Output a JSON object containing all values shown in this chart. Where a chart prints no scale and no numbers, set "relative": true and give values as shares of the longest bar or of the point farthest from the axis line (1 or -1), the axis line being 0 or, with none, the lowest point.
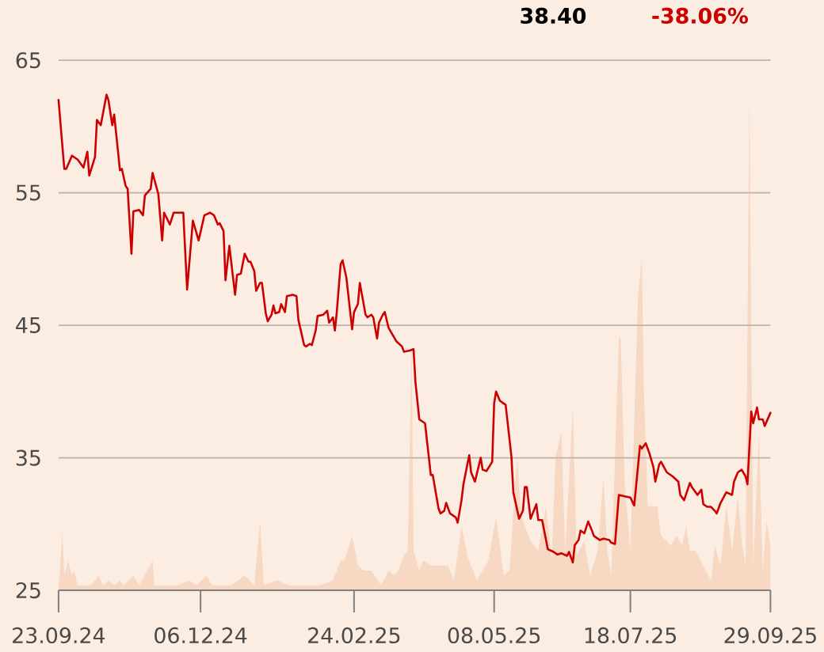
{
  "chart_data": [
    {
      "type": "line",
      "color": "#cc0000",
      "marker": "none",
      "line_style": "solid",
      "grid": "y",
      "annotations": [
        "38.40",
        "-38.06%"
      ],
      "xlim": [
        "2024-09-23",
        "2025-09-29"
      ],
      "ylim": [
        25,
        65
      ],
      "yticks": [
        25,
        35,
        45,
        55,
        65
      ],
      "xticks": [
        {
          "value": "2024-09-23",
          "label": "23.09.24"
        },
        {
          "value": "2024-12-06",
          "label": "06.12.24"
        },
        {
          "value": "2025-02-24",
          "label": "24.02.25"
        },
        {
          "value": "2025-05-08",
          "label": "08.05.25"
        },
        {
          "value": "2025-07-18",
          "label": "18.07.25"
        },
        {
          "value": "2025-09-29",
          "label": "29.09.25"
        }
      ],
      "x": [
        "2024-09-23",
        "2024-09-26",
        "2024-09-27",
        "2024-09-30",
        "2024-10-03",
        "2024-10-06",
        "2024-10-08",
        "2024-10-09",
        "2024-10-12",
        "2024-10-13",
        "2024-10-15",
        "2024-10-18",
        "2024-10-19",
        "2024-10-21",
        "2024-10-22",
        "2024-10-25",
        "2024-10-26",
        "2024-10-28",
        "2024-10-29",
        "2024-10-31",
        "2024-11-01",
        "2024-11-04",
        "2024-11-06",
        "2024-11-07",
        "2024-11-10",
        "2024-11-11",
        "2024-11-14",
        "2024-11-16",
        "2024-11-17",
        "2024-11-20",
        "2024-11-22",
        "2024-11-27",
        "2024-11-29",
        "2024-12-02",
        "2024-12-05",
        "2024-12-08",
        "2024-12-11",
        "2024-12-13",
        "2024-12-15",
        "2024-12-16",
        "2024-12-18",
        "2024-12-19",
        "2024-12-21",
        "2024-12-24",
        "2024-12-25",
        "2024-12-27",
        "2024-12-29",
        "2024-12-31",
        "2025-01-01",
        "2025-01-03",
        "2025-01-04",
        "2025-01-06",
        "2025-01-07",
        "2025-01-09",
        "2025-01-10",
        "2025-01-12",
        "2025-01-13",
        "2025-01-14",
        "2025-01-16",
        "2025-01-17",
        "2025-01-19",
        "2025-01-20",
        "2025-01-23",
        "2025-01-25",
        "2025-01-26",
        "2025-01-29",
        "2025-01-30",
        "2025-02-01",
        "2025-02-02",
        "2025-02-04",
        "2025-02-05",
        "2025-02-08",
        "2025-02-10",
        "2025-02-11",
        "2025-02-13",
        "2025-02-14",
        "2025-02-15",
        "2025-02-17",
        "2025-02-18",
        "2025-02-20",
        "2025-02-23",
        "2025-02-24",
        "2025-02-26",
        "2025-02-27",
        "2025-03-02",
        "2025-03-03",
        "2025-03-05",
        "2025-03-06",
        "2025-03-08",
        "2025-03-09",
        "2025-03-11",
        "2025-03-12",
        "2025-03-14",
        "2025-03-18",
        "2025-03-21",
        "2025-03-22",
        "2025-03-25",
        "2025-03-27",
        "2025-03-28",
        "2025-03-30",
        "2025-04-02",
        "2025-04-05",
        "2025-04-06",
        "2025-04-09",
        "2025-04-10",
        "2025-04-12",
        "2025-04-13",
        "2025-04-15",
        "2025-04-18",
        "2025-04-19",
        "2025-04-21",
        "2025-04-22",
        "2025-04-25",
        "2025-04-26",
        "2025-04-28",
        "2025-05-01",
        "2025-05-02",
        "2025-05-04",
        "2025-05-07",
        "2025-05-08",
        "2025-05-09",
        "2025-05-11",
        "2025-05-14",
        "2025-05-17",
        "2025-05-18",
        "2025-05-21",
        "2025-05-23",
        "2025-05-24",
        "2025-05-25",
        "2025-05-27",
        "2025-05-30",
        "2025-05-31",
        "2025-06-02",
        "2025-06-05",
        "2025-06-08",
        "2025-06-10",
        "2025-06-12",
        "2025-06-15",
        "2025-06-16",
        "2025-06-18",
        "2025-06-19",
        "2025-06-21",
        "2025-06-22",
        "2025-06-24",
        "2025-06-26",
        "2025-06-28",
        "2025-06-29",
        "2025-07-02",
        "2025-07-04",
        "2025-07-07",
        "2025-07-08",
        "2025-07-10",
        "2025-07-11",
        "2025-07-12",
        "2025-07-15",
        "2025-07-18",
        "2025-07-20",
        "2025-07-23",
        "2025-07-24",
        "2025-07-26",
        "2025-07-28",
        "2025-07-30",
        "2025-07-31",
        "2025-08-02",
        "2025-08-03",
        "2025-08-06",
        "2025-08-09",
        "2025-08-12",
        "2025-08-13",
        "2025-08-15",
        "2025-08-18",
        "2025-08-19",
        "2025-08-22",
        "2025-08-24",
        "2025-08-25",
        "2025-08-27",
        "2025-08-29",
        "2025-08-31",
        "2025-09-01",
        "2025-09-03",
        "2025-09-06",
        "2025-09-09",
        "2025-09-10",
        "2025-09-12",
        "2025-09-14",
        "2025-09-16",
        "2025-09-17",
        "2025-09-19",
        "2025-09-20",
        "2025-09-22",
        "2025-09-23",
        "2025-09-25",
        "2025-09-26",
        "2025-09-29"
      ],
      "values": [
        62.0,
        56.8,
        56.8,
        57.8,
        57.5,
        56.9,
        58.1,
        56.3,
        57.7,
        60.5,
        60.1,
        62.4,
        62.0,
        60.1,
        60.9,
        56.7,
        56.8,
        55.5,
        55.3,
        50.4,
        53.6,
        53.7,
        53.3,
        54.8,
        55.3,
        56.5,
        54.9,
        51.4,
        53.5,
        52.6,
        53.5,
        53.5,
        47.7,
        52.9,
        51.4,
        53.3,
        53.5,
        53.3,
        52.6,
        52.7,
        52.1,
        48.4,
        51.0,
        47.3,
        48.8,
        48.9,
        50.4,
        49.8,
        49.8,
        49.1,
        47.6,
        48.2,
        48.2,
        45.9,
        45.3,
        45.8,
        46.5,
        45.9,
        46.0,
        46.6,
        46.0,
        47.2,
        47.3,
        47.2,
        45.4,
        43.5,
        43.4,
        43.6,
        43.5,
        44.6,
        45.7,
        45.8,
        46.1,
        45.2,
        45.6,
        44.6,
        46.0,
        49.6,
        49.9,
        48.6,
        44.7,
        46.0,
        46.6,
        48.2,
        45.8,
        45.6,
        45.8,
        45.6,
        44.0,
        45.2,
        45.8,
        46.0,
        44.8,
        43.8,
        43.4,
        43.0,
        43.1,
        43.2,
        40.7,
        37.9,
        37.6,
        33.7,
        33.7,
        31.2,
        30.8,
        31.0,
        31.6,
        30.8,
        30.5,
        30.1,
        31.8,
        33.0,
        35.2,
        33.9,
        33.2,
        35.0,
        34.1,
        34.0,
        34.7,
        39.1,
        40.0,
        39.3,
        39.0,
        35.1,
        32.4,
        30.4,
        31.0,
        32.8,
        32.8,
        30.4,
        31.5,
        30.3,
        30.3,
        28.1,
        27.9,
        27.7,
        27.8,
        27.6,
        27.9,
        27.1,
        28.4,
        28.8,
        29.5,
        29.3,
        30.2,
        29.5,
        29.1,
        28.8,
        28.9,
        28.8,
        28.6,
        28.5,
        30.4,
        32.2,
        32.1,
        32.0,
        31.4,
        35.9,
        35.7,
        36.1,
        35.3,
        34.3,
        33.2,
        34.5,
        34.7,
        33.9,
        33.6,
        33.2,
        32.2,
        31.8,
        33.1,
        32.8,
        32.2,
        32.6,
        31.5,
        31.3,
        31.3,
        31.0,
        30.8,
        31.6,
        32.4,
        32.2,
        33.2,
        33.9,
        34.1,
        33.6,
        33.0,
        38.5,
        37.6,
        38.8,
        37.9,
        37.9,
        37.4,
        38.4
      ]
    },
    {
      "type": "area",
      "relative": true,
      "tick_labels": false,
      "color": "#f6d8c3",
      "xlim": [
        "2024-09-23",
        "2025-09-29"
      ],
      "x": [
        "2024-09-23",
        "2024-09-25",
        "2024-09-26",
        "2024-09-28",
        "2024-09-30",
        "2024-10-01",
        "2024-10-03",
        "2024-10-10",
        "2024-10-14",
        "2024-10-16",
        "2024-10-19",
        "2024-10-22",
        "2024-10-25",
        "2024-10-27",
        "2024-11-01",
        "2024-11-04",
        "2024-11-11",
        "2024-11-12",
        "2024-11-24",
        "2024-11-30",
        "2024-12-04",
        "2024-12-09",
        "2024-12-12",
        "2024-12-22",
        "2024-12-29",
        "2025-01-03",
        "2025-01-06",
        "2025-01-08",
        "2025-01-15",
        "2025-01-21",
        "2025-01-29",
        "2025-02-06",
        "2025-02-13",
        "2025-02-17",
        "2025-02-19",
        "2025-02-23",
        "2025-02-26",
        "2025-03-01",
        "2025-03-05",
        "2025-03-10",
        "2025-03-14",
        "2025-03-17",
        "2025-03-19",
        "2025-03-22",
        "2025-03-24",
        "2025-03-26",
        "2025-03-27",
        "2025-03-30",
        "2025-04-01",
        "2025-04-05",
        "2025-04-09",
        "2025-04-14",
        "2025-04-17",
        "2025-04-21",
        "2025-04-24",
        "2025-04-29",
        "2025-05-05",
        "2025-05-09",
        "2025-05-13",
        "2025-05-16",
        "2025-05-20",
        "2025-05-22",
        "2025-05-27",
        "2025-05-31",
        "2025-06-04",
        "2025-06-07",
        "2025-06-09",
        "2025-06-12",
        "2025-06-14",
        "2025-06-18",
        "2025-06-20",
        "2025-06-24",
        "2025-06-27",
        "2025-07-01",
        "2025-07-04",
        "2025-07-06",
        "2025-07-08",
        "2025-07-12",
        "2025-07-13",
        "2025-07-15",
        "2025-07-18",
        "2025-07-22",
        "2025-07-24",
        "2025-07-25",
        "2025-07-27",
        "2025-07-30",
        "2025-08-01",
        "2025-08-03",
        "2025-08-06",
        "2025-08-08",
        "2025-08-11",
        "2025-08-14",
        "2025-08-16",
        "2025-08-18",
        "2025-08-21",
        "2025-08-25",
        "2025-08-29",
        "2025-08-31",
        "2025-09-03",
        "2025-09-06",
        "2025-09-09",
        "2025-09-12",
        "2025-09-14",
        "2025-09-16",
        "2025-09-18",
        "2025-09-20",
        "2025-09-23",
        "2025-09-25",
        "2025-09-27",
        "2025-09-29"
      ],
      "values": [
        0.0,
        0.12,
        0.03,
        0.06,
        0.03,
        0.04,
        0.01,
        0.01,
        0.03,
        0.01,
        0.02,
        0.01,
        0.02,
        0.01,
        0.03,
        0.01,
        0.06,
        0.01,
        0.01,
        0.02,
        0.01,
        0.03,
        0.01,
        0.01,
        0.03,
        0.01,
        0.14,
        0.01,
        0.02,
        0.01,
        0.01,
        0.01,
        0.02,
        0.06,
        0.06,
        0.11,
        0.05,
        0.04,
        0.04,
        0.01,
        0.04,
        0.03,
        0.04,
        0.07,
        0.08,
        0.5,
        0.08,
        0.04,
        0.06,
        0.05,
        0.05,
        0.05,
        0.02,
        0.13,
        0.07,
        0.02,
        0.06,
        0.15,
        0.03,
        0.04,
        0.27,
        0.15,
        0.1,
        0.08,
        0.17,
        0.06,
        0.27,
        0.32,
        0.08,
        0.37,
        0.07,
        0.1,
        0.03,
        0.08,
        0.23,
        0.08,
        0.03,
        0.51,
        0.51,
        0.22,
        0.08,
        0.6,
        0.67,
        0.41,
        0.17,
        0.17,
        0.17,
        0.11,
        0.1,
        0.09,
        0.11,
        0.09,
        0.13,
        0.08,
        0.08,
        0.05,
        0.02,
        0.09,
        0.05,
        0.17,
        0.08,
        0.19,
        0.1,
        0.05,
        1.0,
        0.05,
        0.32,
        0.04,
        0.14,
        0.09
      ]
    }
  ]
}
